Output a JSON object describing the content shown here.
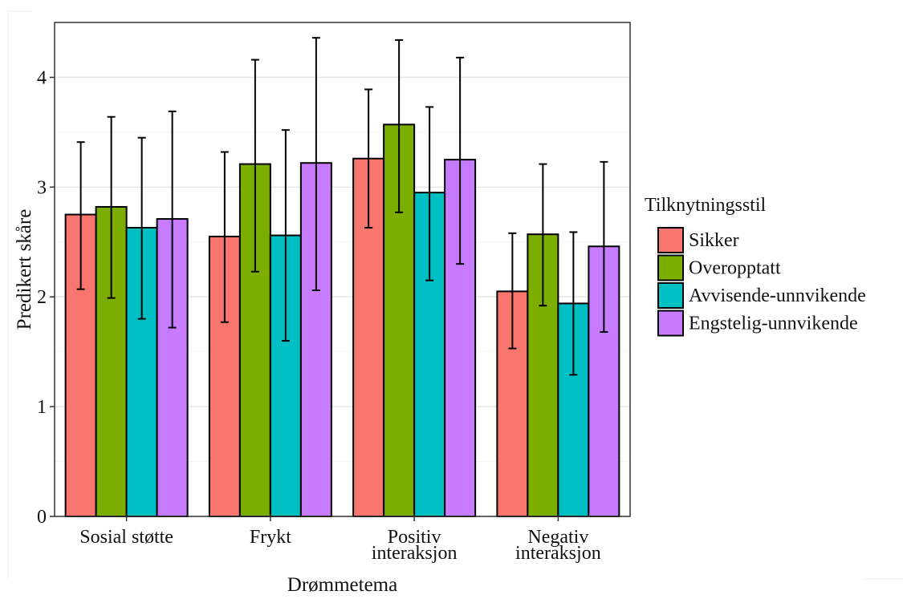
{
  "chart_data": {
    "type": "bar",
    "xlabel": "Drømmetema",
    "ylabel": "Predikert skåre",
    "ylim": [
      0,
      4.5
    ],
    "yticks": [
      0,
      1,
      2,
      3,
      4
    ],
    "grid": "horizontal",
    "legend_title": "Tilknytningsstil",
    "legend_position": "right",
    "categories": [
      [
        "Sosial støtte"
      ],
      [
        "Frykt"
      ],
      [
        "Positiv",
        "interaksjon"
      ],
      [
        "Negativ",
        "interaksjon"
      ]
    ],
    "series": [
      {
        "name": "Sikker",
        "color": "#F8766D",
        "values": [
          2.75,
          2.55,
          3.26,
          2.05
        ],
        "lower": [
          2.07,
          1.77,
          2.63,
          1.53
        ],
        "upper": [
          3.41,
          3.32,
          3.89,
          2.58
        ]
      },
      {
        "name": "Overopptatt",
        "color": "#7CAE00",
        "values": [
          2.82,
          3.21,
          3.57,
          2.57
        ],
        "lower": [
          1.99,
          2.23,
          2.77,
          1.92
        ],
        "upper": [
          3.64,
          4.16,
          4.34,
          3.21
        ]
      },
      {
        "name": "Avvisende-unnvikende",
        "color": "#00BFC4",
        "values": [
          2.63,
          2.56,
          2.95,
          1.94
        ],
        "lower": [
          1.8,
          1.6,
          2.15,
          1.29
        ],
        "upper": [
          3.45,
          3.52,
          3.73,
          2.59
        ]
      },
      {
        "name": "Engstelig-unnvikende",
        "color": "#C77CFF",
        "values": [
          2.71,
          3.22,
          3.25,
          2.46
        ],
        "lower": [
          1.72,
          2.06,
          2.3,
          1.68
        ],
        "upper": [
          3.69,
          4.36,
          4.18,
          3.23
        ]
      }
    ]
  }
}
